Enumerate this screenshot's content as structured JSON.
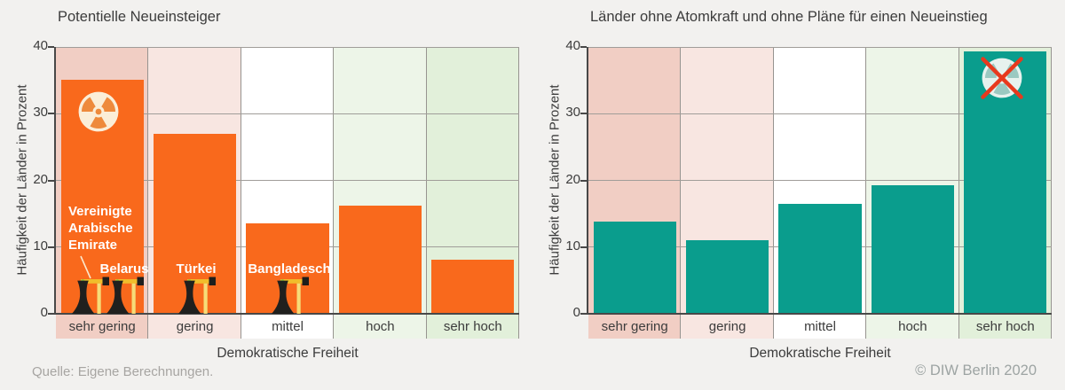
{
  "page": {
    "background": "#F2F1EF"
  },
  "footer": {
    "source": "Quelle: Eigene Berechnungen.",
    "copyright": "© DIW Berlin 2020"
  },
  "chart_data": [
    {
      "type": "bar",
      "title": "Potentielle Neueinsteiger",
      "categories": [
        "sehr gering",
        "gering",
        "mittel",
        "hoch",
        "sehr hoch"
      ],
      "values": [
        35.1,
        27.0,
        13.5,
        16.2,
        8.1
      ],
      "xlabel": "Demokratische Freiheit",
      "ylabel": "Häufigkeit der Länder in Prozent",
      "ylim": [
        0,
        40
      ],
      "yticks": [
        0,
        10,
        20,
        30,
        40
      ],
      "grid": true,
      "legend": "none",
      "bar_color": "#F9691C",
      "panel_colors": [
        "#F1CEC4",
        "#F8E6E1",
        "#FFFFFF",
        "#EDF5E8",
        "#E2F0DA"
      ],
      "icon": "radiation-icon",
      "annotations": [
        {
          "label": "Vereinigte Arabische Emirate",
          "category": "sehr gering"
        },
        {
          "label": "Belarus",
          "category": "sehr gering"
        },
        {
          "label": "Türkei",
          "category": "gering"
        },
        {
          "label": "Bangladesch",
          "category": "mittel"
        }
      ]
    },
    {
      "type": "bar",
      "title": "Länder ohne Atomkraft und ohne Pläne für einen Neueinstieg",
      "categories": [
        "sehr gering",
        "gering",
        "mittel",
        "hoch",
        "sehr hoch"
      ],
      "values": [
        13.8,
        11.0,
        16.5,
        19.3,
        39.4
      ],
      "xlabel": "Demokratische Freiheit",
      "ylabel": "Häufigkeit der Länder in Prozent",
      "ylim": [
        0,
        40
      ],
      "yticks": [
        0,
        10,
        20,
        30,
        40
      ],
      "grid": true,
      "legend": "none",
      "bar_color": "#0A9D8D",
      "panel_colors": [
        "#F1CEC4",
        "#F8E6E1",
        "#FFFFFF",
        "#EDF5E8",
        "#E2F0DA"
      ],
      "icon": "no-nuclear-icon",
      "annotations": []
    }
  ]
}
